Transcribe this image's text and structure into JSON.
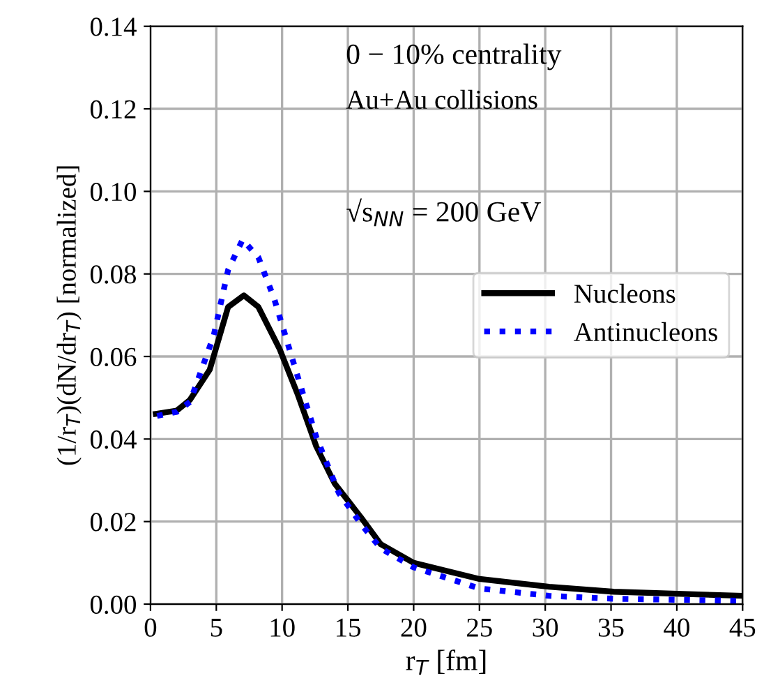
{
  "chart_data": {
    "type": "line",
    "xlabel": "r$_{T}$ [fm]",
    "ylabel": "(1/r$_{T}$)(dN/dr$_{T}$) [normalized]",
    "xlim": [
      0,
      45
    ],
    "ylim": [
      0,
      0.14
    ],
    "xticks": [
      0,
      5,
      10,
      15,
      20,
      25,
      30,
      35,
      40,
      45
    ],
    "yticks": [
      {
        "value": 0,
        "label": "0.00"
      },
      {
        "value": 0.02,
        "label": "0.02"
      },
      {
        "value": 0.04,
        "label": "0.04"
      },
      {
        "value": 0.06,
        "label": "0.06"
      },
      {
        "value": 0.08,
        "label": "0.08"
      },
      {
        "value": 0.1,
        "label": "0.10"
      },
      {
        "value": 0.12,
        "label": "0.12"
      },
      {
        "value": 0.14,
        "label": "0.14"
      }
    ],
    "grid": true,
    "legend": "right",
    "marker": "none",
    "annotations": [
      "0 − 10% centrality",
      "Au+Au collisions",
      "√s$_{NN}$ = 200 GeV"
    ],
    "series": [
      {
        "name": "Nucleons",
        "color": "#000000",
        "line_style": "solid",
        "x": [
          0.4,
          2.0,
          3.0,
          4.5,
          5.9,
          7.1,
          8.2,
          9.8,
          11.2,
          12.6,
          14.0,
          15.1,
          16.0,
          17.5,
          20.0,
          25.0,
          30.3,
          35.2,
          45.0
        ],
        "values": [
          0.0461,
          0.0469,
          0.0495,
          0.0568,
          0.072,
          0.0748,
          0.072,
          0.0619,
          0.0507,
          0.0382,
          0.0292,
          0.0247,
          0.021,
          0.0145,
          0.01,
          0.0061,
          0.0042,
          0.003,
          0.002
        ]
      },
      {
        "name": "Antinucleons",
        "color": "#0000ff",
        "line_style": "dotted",
        "x": [
          0.5,
          2.0,
          3.0,
          4.8,
          5.9,
          7.0,
          8.2,
          9.4,
          11.2,
          12.6,
          14.3,
          16.1,
          17.5,
          20.0,
          25.0,
          30.3,
          35.2,
          45.0
        ],
        "values": [
          0.0456,
          0.0466,
          0.049,
          0.065,
          0.081,
          0.0883,
          0.084,
          0.074,
          0.055,
          0.0405,
          0.027,
          0.019,
          0.0135,
          0.0089,
          0.0038,
          0.002,
          0.0013,
          0.0008
        ]
      }
    ]
  }
}
